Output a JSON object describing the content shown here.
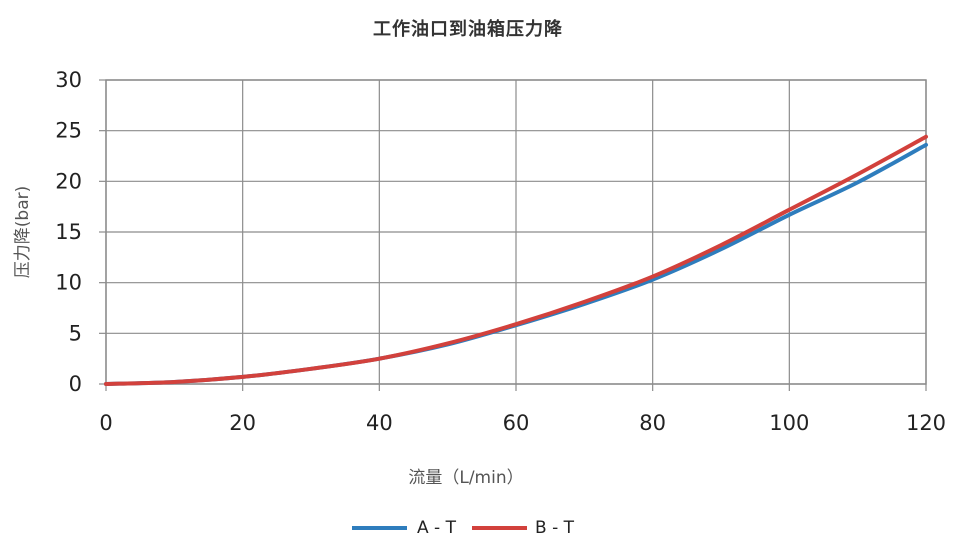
{
  "chart_data": {
    "type": "line",
    "title": "工作油口到油箱压力降",
    "xlabel": "流量（L/min）",
    "ylabel": "压力降(bar)",
    "xlim": [
      0,
      120
    ],
    "ylim": [
      0,
      30
    ],
    "xticks": [
      "0",
      "20",
      "40",
      "60",
      "80",
      "100",
      "120"
    ],
    "yticks": [
      "0",
      "5",
      "10",
      "15",
      "20",
      "25",
      "30"
    ],
    "grid": true,
    "legend_position": "bottom",
    "series": [
      {
        "name": "A - T",
        "color": "#2e7dbd",
        "x": [
          0,
          10,
          20,
          30,
          40,
          50,
          60,
          70,
          80,
          90,
          100,
          110,
          120
        ],
        "y": [
          0,
          0.2,
          0.7,
          1.5,
          2.5,
          3.9,
          5.8,
          7.9,
          10.3,
          13.3,
          16.7,
          19.9,
          23.6
        ]
      },
      {
        "name": "B - T",
        "color": "#d2413c",
        "x": [
          0,
          10,
          20,
          30,
          40,
          50,
          60,
          70,
          80,
          90,
          100,
          110,
          120
        ],
        "y": [
          0,
          0.2,
          0.7,
          1.5,
          2.5,
          4.0,
          5.9,
          8.1,
          10.6,
          13.7,
          17.2,
          20.7,
          24.4
        ]
      }
    ]
  }
}
